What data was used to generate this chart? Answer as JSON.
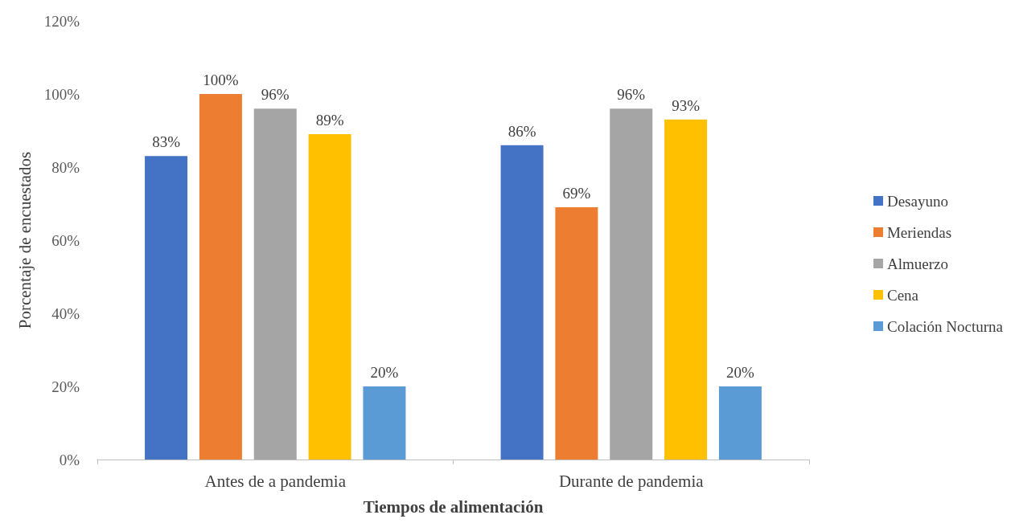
{
  "chart_data": {
    "type": "bar",
    "xlabel": "Tiempos de alimentación",
    "ylabel": "Porcentaje de encuestados",
    "categories": [
      "Antes de a pandemia",
      "Durante de pandemia"
    ],
    "series": [
      {
        "name": "Desayuno",
        "color": "#4472c4",
        "values": [
          83,
          86
        ],
        "value_labels": [
          "83%",
          "86%"
        ]
      },
      {
        "name": "Meriendas",
        "color": "#ed7d31",
        "values": [
          100,
          69
        ],
        "value_labels": [
          "100%",
          "69%"
        ]
      },
      {
        "name": "Almuerzo",
        "color": "#a5a5a5",
        "values": [
          96,
          96
        ],
        "value_labels": [
          "96%",
          "96%"
        ]
      },
      {
        "name": "Cena",
        "color": "#ffc000",
        "values": [
          89,
          93
        ],
        "value_labels": [
          "89%",
          "93%"
        ]
      },
      {
        "name": "Colación Nocturna",
        "color": "#5b9bd5",
        "values": [
          20,
          20
        ],
        "value_labels": [
          "20%",
          "20%"
        ]
      }
    ],
    "ylim": [
      0,
      120
    ],
    "yticks": [
      {
        "value": 0,
        "label": "0%"
      },
      {
        "value": 20,
        "label": "20%"
      },
      {
        "value": 40,
        "label": "40%"
      },
      {
        "value": 60,
        "label": "60%"
      },
      {
        "value": 80,
        "label": "80%"
      },
      {
        "value": 100,
        "label": "100%"
      },
      {
        "value": 120,
        "label": "120%"
      }
    ],
    "grid": false,
    "legend": "right"
  }
}
